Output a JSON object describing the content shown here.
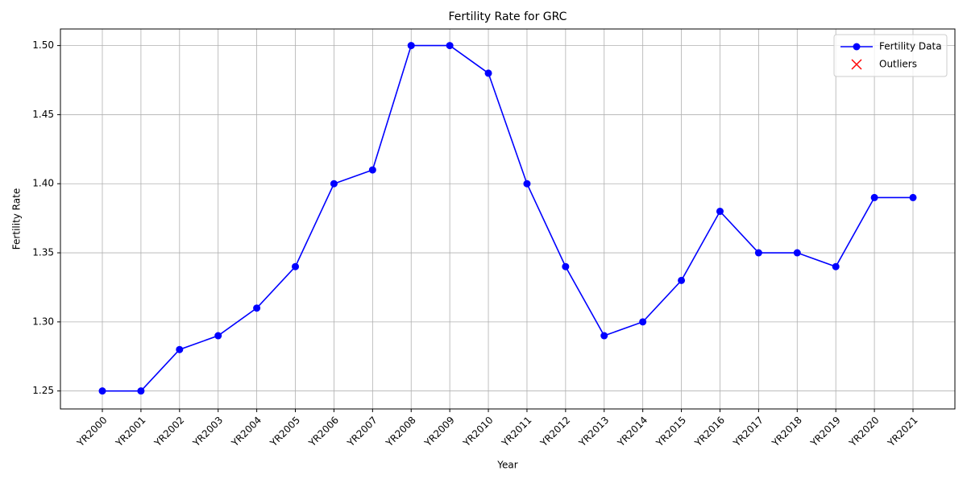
{
  "chart_data": {
    "type": "line",
    "title": "Fertility Rate for GRC",
    "xlabel": "Year",
    "ylabel": "Fertility Rate",
    "categories": [
      "YR2000",
      "YR2001",
      "YR2002",
      "YR2003",
      "YR2004",
      "YR2005",
      "YR2006",
      "YR2007",
      "YR2008",
      "YR2009",
      "YR2010",
      "YR2011",
      "YR2012",
      "YR2013",
      "YR2014",
      "YR2015",
      "YR2016",
      "YR2017",
      "YR2018",
      "YR2019",
      "YR2020",
      "YR2021"
    ],
    "series": [
      {
        "name": "Fertility Data",
        "color": "#0000ff",
        "marker": "circle",
        "values": [
          1.25,
          1.25,
          1.28,
          1.29,
          1.31,
          1.34,
          1.4,
          1.41,
          1.5,
          1.5,
          1.48,
          1.4,
          1.34,
          1.29,
          1.3,
          1.33,
          1.38,
          1.35,
          1.35,
          1.34,
          1.39,
          1.39
        ]
      },
      {
        "name": "Outliers",
        "color": "#ff0000",
        "marker": "x",
        "values": [
          null,
          null,
          null,
          null,
          null,
          null,
          null,
          null,
          null,
          null,
          null,
          null,
          null,
          null,
          null,
          null,
          null,
          null,
          null,
          null,
          null,
          null
        ]
      }
    ],
    "ylim": [
      1.237,
      1.512
    ],
    "yticks": [
      1.25,
      {
        "value": 1.3,
        "label": "1.30"
      },
      1.35,
      {
        "value": 1.4,
        "label": "1.40"
      },
      1.45,
      {
        "value": 1.5,
        "label": "1.50"
      }
    ],
    "grid": true,
    "legend": "upper right"
  }
}
